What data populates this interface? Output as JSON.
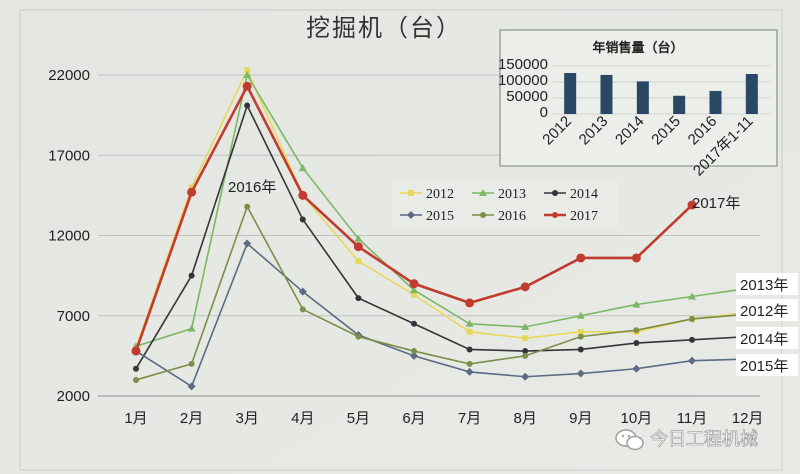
{
  "chart_data": [
    {
      "type": "line",
      "title": "挖掘机（台）",
      "categories": [
        "1月",
        "2月",
        "3月",
        "4月",
        "5月",
        "6月",
        "7月",
        "8月",
        "9月",
        "10月",
        "11月",
        "12月"
      ],
      "ylim": [
        2000,
        22000
      ],
      "yticks": [
        "22000",
        "17000",
        "12000",
        "7000",
        "2000"
      ],
      "yticks_values": [
        22000,
        17000,
        12000,
        7000,
        2000
      ],
      "grid": true,
      "legend_position": "center",
      "series": [
        {
          "name": "2012",
          "color": "#e8d85a",
          "marker": "square",
          "values": [
            5000,
            15000,
            22300,
            14500,
            10400,
            8300,
            6000,
            5600,
            6000,
            6000,
            6800,
            7200
          ]
        },
        {
          "name": "2013",
          "color": "#7ab865",
          "marker": "triangle",
          "values": [
            5100,
            6200,
            22000,
            16200,
            11800,
            8600,
            6500,
            6300,
            7000,
            7700,
            8200,
            8700
          ]
        },
        {
          "name": "2014",
          "color": "#35343a",
          "marker": "circle",
          "values": [
            3700,
            9500,
            20100,
            13000,
            8100,
            6500,
            4900,
            4800,
            4900,
            5300,
            5500,
            5700
          ]
        },
        {
          "name": "2015",
          "color": "#5a6b83",
          "marker": "diamond",
          "values": [
            4800,
            2600,
            11500,
            8500,
            5800,
            4500,
            3500,
            3200,
            3400,
            3700,
            4200,
            4300
          ]
        },
        {
          "name": "2016",
          "color": "#7c8e48",
          "marker": "circle",
          "values": [
            3000,
            4000,
            13800,
            7400,
            5700,
            4800,
            4000,
            4500,
            5700,
            6100,
            6800,
            7100
          ]
        },
        {
          "name": "2017",
          "color": "#c13c2e",
          "marker": "circle",
          "values": [
            4800,
            14700,
            21300,
            14500,
            11300,
            9000,
            7800,
            8800,
            10600,
            10600,
            13900,
            null
          ]
        }
      ],
      "annotations": {
        "y2016": "2016年",
        "y2017": "2017年",
        "y2013": "2013年",
        "y2012": "2012年",
        "y2014": "2014年",
        "y2015": "2015年"
      }
    },
    {
      "type": "bar",
      "title": "年销售量（台）",
      "categories": [
        "2012",
        "2013",
        "2014",
        "2015",
        "2016",
        "2017年1-11"
      ],
      "values": [
        128000,
        122000,
        102000,
        57000,
        72000,
        125000
      ],
      "ylim": [
        0,
        150000
      ],
      "yticks": [
        "150000",
        "100000",
        "50000",
        "0"
      ],
      "yticks_values": [
        150000,
        100000,
        50000,
        0
      ],
      "bar_color": "#2a4766"
    }
  ],
  "watermark": "今日工程机械"
}
